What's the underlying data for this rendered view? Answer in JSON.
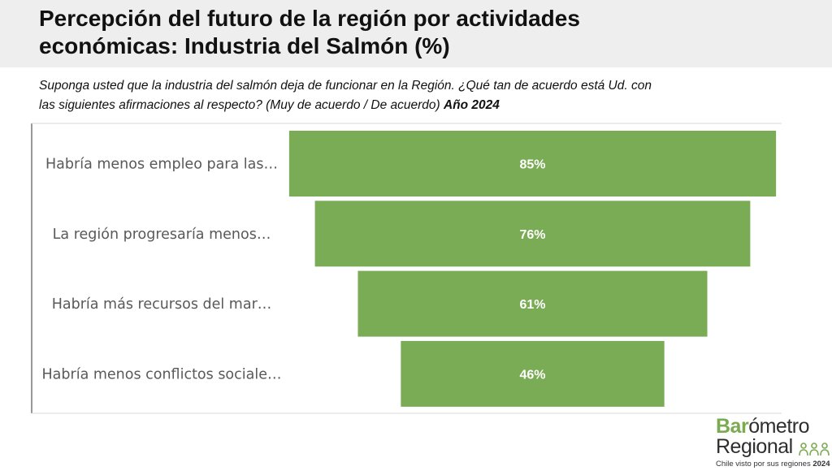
{
  "header": {
    "title_line1": "Percepción del futuro de la región por actividades",
    "title_line2": "económicas: Industria del Salmón (%)"
  },
  "subtitle": {
    "line1": "Suponga usted que la industria del salmón deja de funcionar en la Región. ¿Qué tan de acuerdo está Ud. con",
    "line2": "las siguientes afirmaciones al respecto? (Muy de acuerdo / De acuerdo)",
    "year": "Año 2024"
  },
  "chart_data": {
    "type": "bar",
    "orientation": "horizontal-centered (funnel)",
    "categories": [
      "Habría menos empleo para las…",
      "La región progresaría menos…",
      "Habría más recursos del mar…",
      "Habría menos conflictos sociale…"
    ],
    "values": [
      85,
      76,
      61,
      46
    ],
    "value_labels": [
      "85%",
      "76%",
      "61%",
      "46%"
    ],
    "bar_color": "#7aab55",
    "label_color": "#ffffff",
    "title": "",
    "xlabel": "",
    "ylabel": "",
    "grid": false,
    "legend": "none"
  },
  "logo": {
    "word1_bold": "Bar",
    "word1_rest": "ómetro",
    "word2": "Regional",
    "tagline": "Chile visto por sus regiones",
    "tagline_year": "2024",
    "people_icon": "people-group-icon",
    "accent": "#7aab50"
  }
}
